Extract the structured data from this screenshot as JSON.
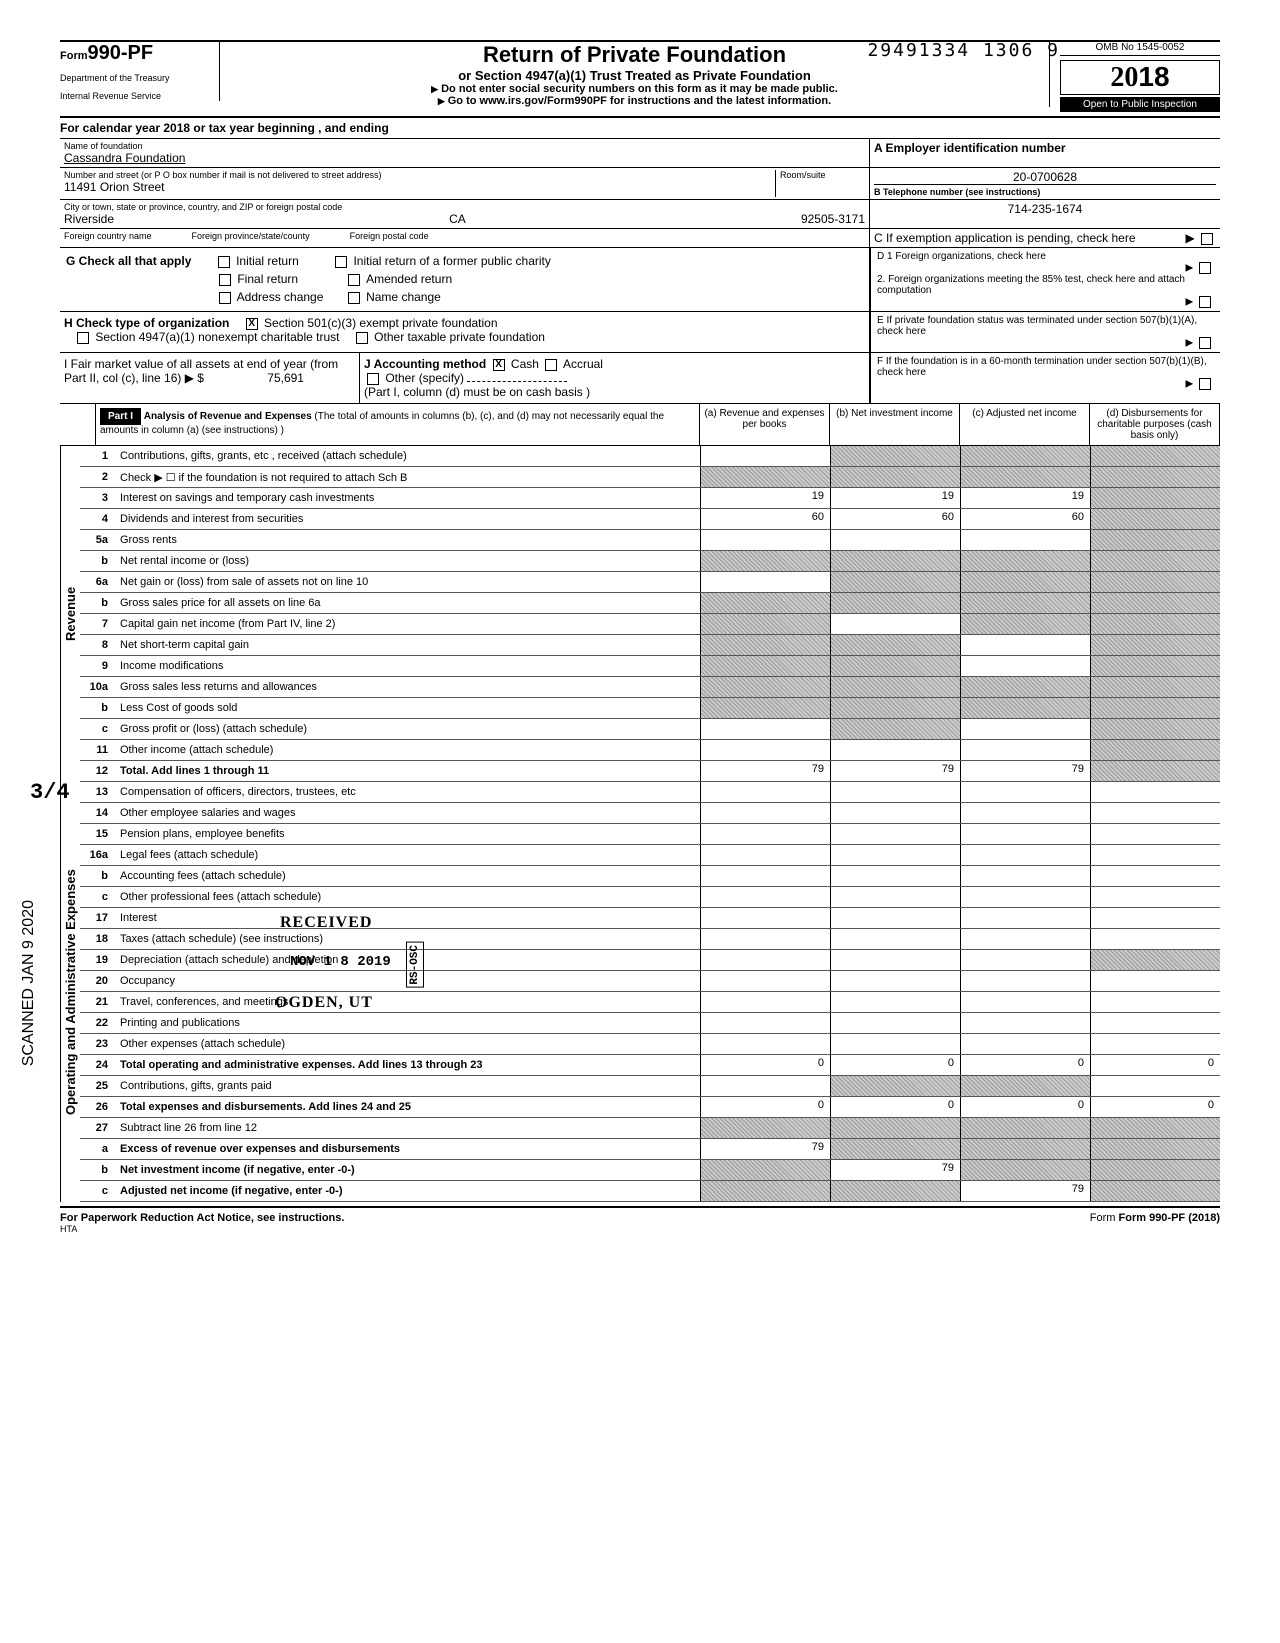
{
  "header": {
    "dln": "29491334 1306 9",
    "form_number": "990-PF",
    "form_prefix": "Form",
    "dept": "Department of the Treasury",
    "irs": "Internal Revenue Service",
    "title": "Return of Private Foundation",
    "subtitle": "or Section 4947(a)(1) Trust Treated as Private Foundation",
    "note1": "Do not enter social security numbers on this form as it may be made public.",
    "note2": "Go to www.irs.gov/Form990PF for instructions and the latest information.",
    "omb": "OMB No 1545-0052",
    "year": "2018",
    "open": "Open to Public Inspection"
  },
  "cal_year": "For calendar year 2018 or tax year beginning                                              , and ending",
  "foundation": {
    "name_label": "Name of foundation",
    "name": "Cassandra Foundation",
    "addr_label": "Number and street (or P O box number if mail is not delivered to street address)",
    "addr": "11491 Orion Street",
    "room_label": "Room/suite",
    "city_label": "City or town, state or province, country, and ZIP or foreign postal code",
    "city": "Riverside",
    "state": "CA",
    "zip": "92505-3171",
    "foreign_country_label": "Foreign country name",
    "foreign_province_label": "Foreign province/state/county",
    "foreign_postal_label": "Foreign postal code"
  },
  "ein": {
    "label_a": "A Employer identification number",
    "value": "20-0700628",
    "label_b": "B Telephone number (see instructions)",
    "phone": "714-235-1674",
    "label_c": "C  If exemption application is pending, check here"
  },
  "section_g": {
    "label": "G  Check all that apply",
    "opts": [
      "Initial return",
      "Initial return of a former public charity",
      "Final return",
      "Amended return",
      "Address change",
      "Name change"
    ]
  },
  "section_h": {
    "label": "H  Check type of organization",
    "opt1": "Section 501(c)(3) exempt private foundation",
    "opt2": "Section 4947(a)(1) nonexempt charitable trust",
    "opt3": "Other taxable private foundation"
  },
  "section_i": {
    "label": "I   Fair market value of all assets at end of year (from Part II, col (c), line 16)",
    "value": "75,691",
    "j_label": "J   Accounting method",
    "j_cash": "Cash",
    "j_accrual": "Accrual",
    "j_other": "Other (specify)",
    "j_note": "(Part I, column (d) must be on cash basis )"
  },
  "right_col": {
    "d1": "D  1  Foreign organizations, check here",
    "d2": "2. Foreign organizations meeting the 85% test, check here and attach computation",
    "e": "E  If private foundation status was terminated under section 507(b)(1)(A), check here",
    "f": "F  If the foundation is in a 60-month termination under section 507(b)(1)(B), check here"
  },
  "part1": {
    "header": "Part I",
    "title": "Analysis of Revenue and Expenses",
    "title_note": "(The total of amounts in columns (b), (c), and (d) may not necessarily equal the amounts in column (a) (see instructions) )",
    "col_a": "(a) Revenue and expenses per books",
    "col_b": "(b) Net investment income",
    "col_c": "(c) Adjusted net income",
    "col_d": "(d) Disbursements for charitable purposes (cash basis only)"
  },
  "revenue_label": "Revenue",
  "expenses_label": "Operating and Administrative Expenses",
  "lines": [
    {
      "num": "1",
      "desc": "Contributions, gifts, grants, etc , received (attach schedule)",
      "a": "",
      "b": "shaded",
      "c": "shaded",
      "d": "shaded"
    },
    {
      "num": "2",
      "desc": "Check ▶ ☐ if the foundation is not required to attach Sch B",
      "a": "shaded",
      "b": "shaded",
      "c": "shaded",
      "d": "shaded"
    },
    {
      "num": "3",
      "desc": "Interest on savings and temporary cash investments",
      "a": "19",
      "b": "19",
      "c": "19",
      "d": "shaded"
    },
    {
      "num": "4",
      "desc": "Dividends and interest from securities",
      "a": "60",
      "b": "60",
      "c": "60",
      "d": "shaded"
    },
    {
      "num": "5a",
      "desc": "Gross rents",
      "a": "",
      "b": "",
      "c": "",
      "d": "shaded"
    },
    {
      "num": "b",
      "desc": "Net rental income or (loss)",
      "a": "shaded",
      "b": "shaded",
      "c": "shaded",
      "d": "shaded"
    },
    {
      "num": "6a",
      "desc": "Net gain or (loss) from sale of assets not on line 10",
      "a": "",
      "b": "shaded",
      "c": "shaded",
      "d": "shaded"
    },
    {
      "num": "b",
      "desc": "Gross sales price for all assets on line 6a",
      "a": "shaded",
      "b": "shaded",
      "c": "shaded",
      "d": "shaded"
    },
    {
      "num": "7",
      "desc": "Capital gain net income (from Part IV, line 2)",
      "a": "shaded",
      "b": "",
      "c": "shaded",
      "d": "shaded"
    },
    {
      "num": "8",
      "desc": "Net short-term capital gain",
      "a": "shaded",
      "b": "shaded",
      "c": "",
      "d": "shaded"
    },
    {
      "num": "9",
      "desc": "Income modifications",
      "a": "shaded",
      "b": "shaded",
      "c": "",
      "d": "shaded"
    },
    {
      "num": "10a",
      "desc": "Gross sales less returns and allowances",
      "a": "shaded",
      "b": "shaded",
      "c": "shaded",
      "d": "shaded"
    },
    {
      "num": "b",
      "desc": "Less Cost of goods sold",
      "a": "shaded",
      "b": "shaded",
      "c": "shaded",
      "d": "shaded"
    },
    {
      "num": "c",
      "desc": "Gross profit or (loss) (attach schedule)",
      "a": "",
      "b": "shaded",
      "c": "",
      "d": "shaded"
    },
    {
      "num": "11",
      "desc": "Other income (attach schedule)",
      "a": "",
      "b": "",
      "c": "",
      "d": "shaded"
    },
    {
      "num": "12",
      "desc": "Total. Add lines 1 through 11",
      "bold": true,
      "a": "79",
      "b": "79",
      "c": "79",
      "d": "shaded"
    }
  ],
  "exp_lines": [
    {
      "num": "13",
      "desc": "Compensation of officers, directors, trustees, etc",
      "a": "",
      "b": "",
      "c": "",
      "d": ""
    },
    {
      "num": "14",
      "desc": "Other employee salaries and wages",
      "a": "",
      "b": "",
      "c": "",
      "d": ""
    },
    {
      "num": "15",
      "desc": "Pension plans, employee benefits",
      "a": "",
      "b": "",
      "c": "",
      "d": ""
    },
    {
      "num": "16a",
      "desc": "Legal fees (attach schedule)",
      "a": "",
      "b": "",
      "c": "",
      "d": ""
    },
    {
      "num": "b",
      "desc": "Accounting fees (attach schedule)",
      "a": "",
      "b": "",
      "c": "",
      "d": ""
    },
    {
      "num": "c",
      "desc": "Other professional fees (attach schedule)",
      "a": "",
      "b": "",
      "c": "",
      "d": ""
    },
    {
      "num": "17",
      "desc": "Interest",
      "a": "",
      "b": "",
      "c": "",
      "d": ""
    },
    {
      "num": "18",
      "desc": "Taxes (attach schedule) (see instructions)",
      "a": "",
      "b": "",
      "c": "",
      "d": ""
    },
    {
      "num": "19",
      "desc": "Depreciation (attach schedule) and depletion",
      "a": "",
      "b": "",
      "c": "",
      "d": "shaded"
    },
    {
      "num": "20",
      "desc": "Occupancy",
      "a": "",
      "b": "",
      "c": "",
      "d": ""
    },
    {
      "num": "21",
      "desc": "Travel, conferences, and meetings",
      "a": "",
      "b": "",
      "c": "",
      "d": ""
    },
    {
      "num": "22",
      "desc": "Printing and publications",
      "a": "",
      "b": "",
      "c": "",
      "d": ""
    },
    {
      "num": "23",
      "desc": "Other expenses (attach schedule)",
      "a": "",
      "b": "",
      "c": "",
      "d": ""
    },
    {
      "num": "24",
      "desc": "Total operating and administrative expenses. Add lines 13 through 23",
      "bold": true,
      "a": "0",
      "b": "0",
      "c": "0",
      "d": "0"
    },
    {
      "num": "25",
      "desc": "Contributions, gifts, grants paid",
      "a": "",
      "b": "shaded",
      "c": "shaded",
      "d": ""
    },
    {
      "num": "26",
      "desc": "Total expenses and disbursements. Add lines 24 and 25",
      "bold": true,
      "a": "0",
      "b": "0",
      "c": "0",
      "d": "0"
    },
    {
      "num": "27",
      "desc": "Subtract line 26 from line 12",
      "a": "shaded",
      "b": "shaded",
      "c": "shaded",
      "d": "shaded"
    },
    {
      "num": "a",
      "desc": "Excess of revenue over expenses and disbursements",
      "bold": true,
      "a": "79",
      "b": "shaded",
      "c": "shaded",
      "d": "shaded"
    },
    {
      "num": "b",
      "desc": "Net investment income (if negative, enter -0-)",
      "bold": true,
      "a": "shaded",
      "b": "79",
      "c": "shaded",
      "d": "shaded"
    },
    {
      "num": "c",
      "desc": "Adjusted net income (if negative, enter -0-)",
      "bold": true,
      "a": "shaded",
      "b": "shaded",
      "c": "79",
      "d": "shaded"
    }
  ],
  "footer": {
    "left": "For Paperwork Reduction Act Notice, see instructions.",
    "hta": "HTA",
    "right": "Form 990-PF (2018)"
  },
  "stamps": {
    "scanned": "SCANNED JAN 9 2020",
    "received": "RECEIVED",
    "received_date": "NOV 1 8 2019",
    "received_loc": "OGDEN, UT",
    "rs_osc": "RS-OSC",
    "fraction": "3/4"
  },
  "colors": {
    "bg": "#ffffff",
    "text": "#000000",
    "shade": "#bbbbbb"
  }
}
